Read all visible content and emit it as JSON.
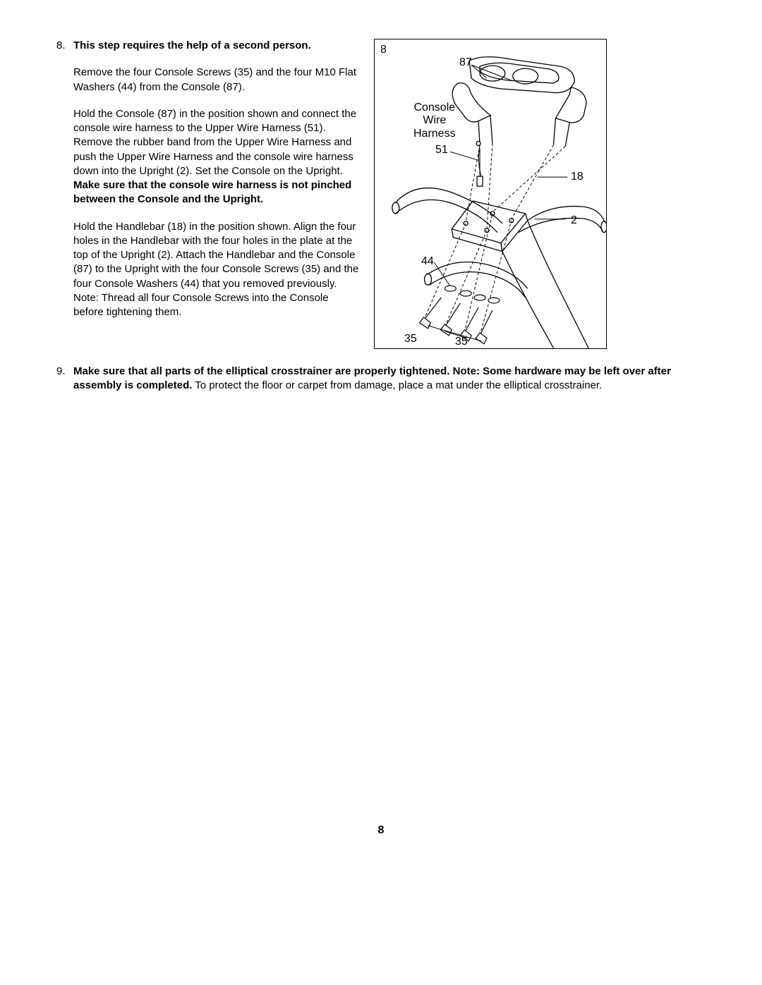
{
  "step8": {
    "number": "8.",
    "title": "This step requires the help of a second person.",
    "para1": "Remove the four Console Screws (35) and the four M10 Flat Washers (44) from the Console (87).",
    "para2a": "Hold the Console (87) in the position shown and connect the console wire harness to the Upper Wire Harness (51). Remove the rubber band from the Upper Wire Harness and push the Upper Wire Harness and the console wire harness down into the Upright (2). Set the Console on the Upright. ",
    "para2b": "Make sure that the console wire harness is not pinched between the Console and the Upright.",
    "para3": "Hold the Handlebar (18) in the position shown. Align the four holes in the Handlebar with the four holes in the plate at the top of the Upright (2). Attach the Handlebar and the Console (87) to the Upright with the four Console Screws (35) and the four Console Washers (44) that you removed previously. Note: Thread all four Console Screws into the Console before tightening them."
  },
  "step9": {
    "number": "9.",
    "bold": "Make sure that all parts of the elliptical crosstrainer are properly tightened. Note: Some hardware may be left over after assembly is completed.",
    "rest": " To protect the floor or carpet from damage, place a mat under the elliptical crosstrainer."
  },
  "diagram": {
    "corner": "8",
    "l87": "87",
    "consoleWire": "Console\nWire\nHarness",
    "l51": "51",
    "l18": "18",
    "l2": "2",
    "l44": "44",
    "l35a": "35",
    "l35b": "35",
    "stroke": "#000000",
    "fill": "#ffffff"
  },
  "pageNumber": "8"
}
